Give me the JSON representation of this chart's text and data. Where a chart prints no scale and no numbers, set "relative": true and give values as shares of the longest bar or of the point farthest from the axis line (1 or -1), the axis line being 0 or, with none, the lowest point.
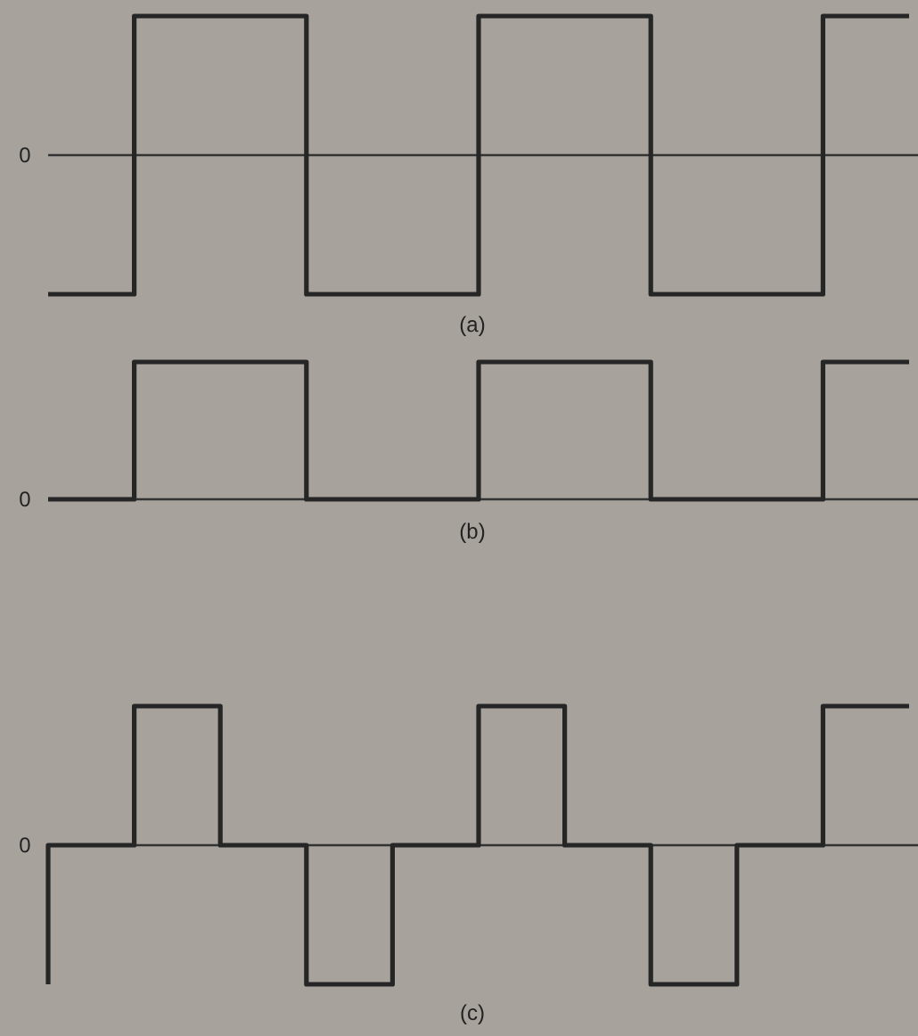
{
  "chart_data": [
    {
      "type": "step",
      "relative": true,
      "categories": [
        null,
        null,
        null,
        null,
        null,
        null,
        null,
        null,
        null,
        null,
        null
      ],
      "values": [
        -1,
        -1,
        1,
        1,
        -1,
        -1,
        1,
        1,
        -1,
        -1,
        1
      ],
      "color": "#262626",
      "xlabel": "(a)",
      "annotations": [
        "0"
      ]
    },
    {
      "type": "step",
      "relative": true,
      "categories": [
        null,
        null,
        null,
        null,
        null,
        null,
        null,
        null,
        null,
        null,
        null
      ],
      "values": [
        0,
        0,
        1,
        1,
        0,
        0,
        1,
        1,
        0,
        0,
        1
      ],
      "color": "#262626",
      "xlabel": "(b)",
      "annotations": [
        "0"
      ]
    },
    {
      "type": "step",
      "relative": true,
      "categories": [
        null,
        null,
        null,
        null,
        null,
        null,
        null,
        null,
        null,
        null,
        null
      ],
      "values": [
        -1,
        0,
        1,
        0,
        -1,
        0,
        1,
        0,
        -1,
        0,
        1
      ],
      "color": "#262626",
      "xlabel": "(c)",
      "annotations": [
        "0"
      ]
    }
  ]
}
